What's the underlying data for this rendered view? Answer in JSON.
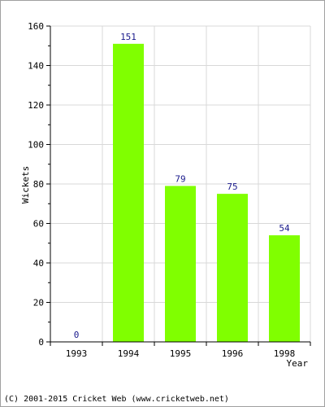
{
  "chart_data": {
    "type": "bar",
    "title": "",
    "xlabel": "Year",
    "ylabel": "Wickets",
    "categories": [
      "1993",
      "1994",
      "1995",
      "1996",
      "1998"
    ],
    "values": [
      0,
      151,
      79,
      75,
      54
    ],
    "data_labels": [
      "0",
      "151",
      "79",
      "75",
      "54"
    ],
    "ylim": [
      0,
      160
    ],
    "yticks": [
      0,
      20,
      40,
      60,
      80,
      100,
      120,
      140,
      160
    ],
    "grid": true,
    "bar_color": "#80ff00",
    "label_color": "#1a1a8c"
  },
  "footer": {
    "copyright": "(C) 2001-2015 Cricket Web (www.cricketweb.net)"
  }
}
